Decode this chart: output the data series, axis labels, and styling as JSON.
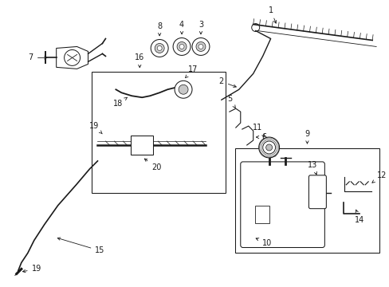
{
  "bg_color": "#ffffff",
  "line_color": "#1a1a1a",
  "figsize": [
    4.89,
    3.6
  ],
  "dpi": 100,
  "lw": 0.75
}
